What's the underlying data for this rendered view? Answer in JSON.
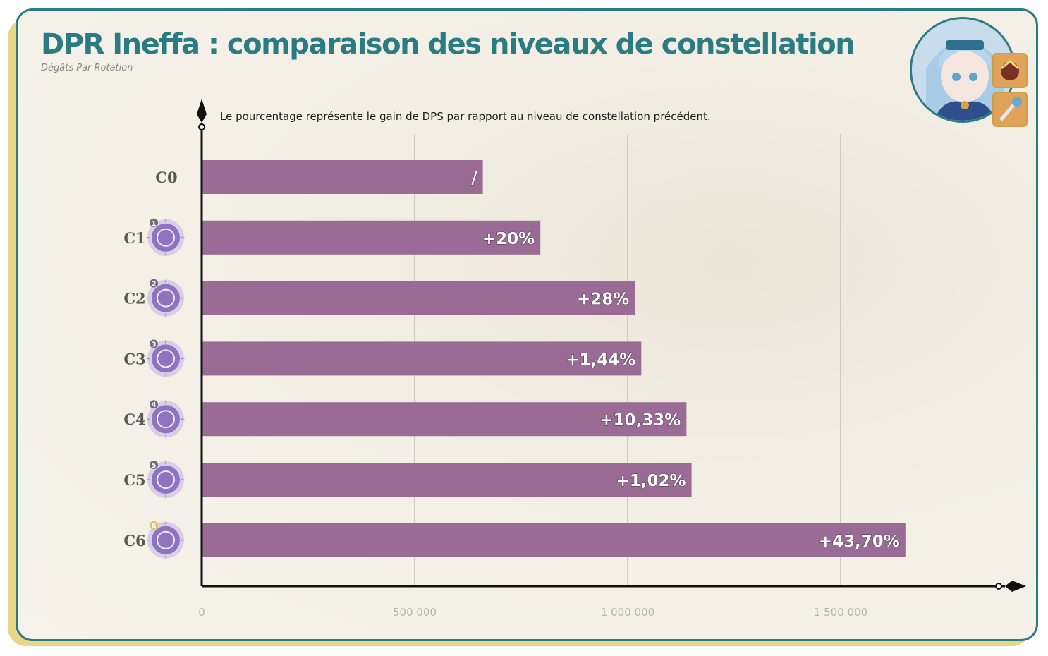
{
  "header": {
    "title": "DPR Ineffa : comparaison des niveaux de constellation",
    "subtitle": "Dégâts Par Rotation",
    "note": "Le pourcentage représente le gain de DPS par rapport au niveau de constellation précédent."
  },
  "icons": {
    "portrait": "character-portrait-icon",
    "artifact": "artifact-icon",
    "weapon": "weapon-icon",
    "constellation": "constellation-icon"
  },
  "colors": {
    "accent": "#2b7b82",
    "bar": "#9a6b95",
    "frame_shadow": "#ead687",
    "axis": "#111111",
    "grid": "#cfcac0"
  },
  "chart_data": {
    "type": "bar",
    "orientation": "horizontal",
    "title": "DPR Ineffa : comparaison des niveaux de constellation",
    "subtitle": "Dégâts Par Rotation",
    "annotation": "Le pourcentage représente le gain de DPS par rapport au niveau de constellation précédent.",
    "categories": [
      "C0",
      "C1",
      "C2",
      "C3",
      "C4",
      "C5",
      "C6"
    ],
    "values": [
      660000,
      795000,
      1017000,
      1032000,
      1138000,
      1150000,
      1652000
    ],
    "bar_labels": [
      "/",
      "+20%",
      "+28%",
      "+1,44%",
      "+10,33%",
      "+1,02%",
      "+43,70%"
    ],
    "constellation_badges": [
      "",
      "1",
      "2",
      "3",
      "4",
      "5",
      "6"
    ],
    "x_ticks": [
      0,
      500000,
      1000000,
      1500000
    ],
    "x_tick_labels": [
      "0",
      "500 000",
      "1 000 000",
      "1 500 000"
    ],
    "xlim": [
      0,
      1850000
    ],
    "grid": true
  }
}
